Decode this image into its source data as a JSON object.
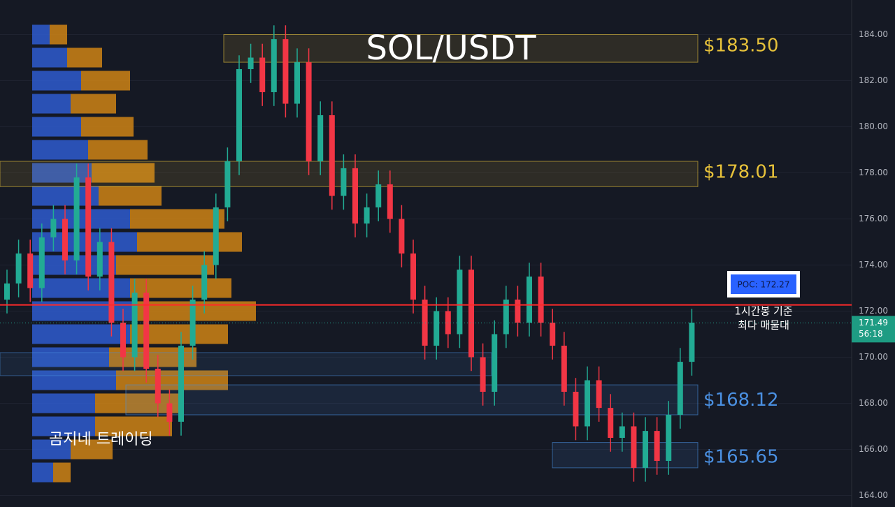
{
  "chart_data": {
    "type": "candlestick",
    "title": "SOL/USDT",
    "watermark": "곰지네 트레이딩",
    "ylim": [
      163.5,
      185.5
    ],
    "yticks": [
      {
        "value": 164,
        "label": "164.00"
      },
      {
        "value": 166,
        "label": "166.00"
      },
      {
        "value": 168,
        "label": "168.00"
      },
      {
        "value": 170,
        "label": "170.00"
      },
      {
        "value": 172,
        "label": "172.00"
      },
      {
        "value": 174,
        "label": "174.00"
      },
      {
        "value": 176,
        "label": "176.00"
      },
      {
        "value": 178,
        "label": "178.00"
      },
      {
        "value": 180,
        "label": "180.00"
      },
      {
        "value": 182,
        "label": "182.00"
      },
      {
        "value": 184,
        "label": "184.00"
      }
    ],
    "grid": true,
    "up_color": "#22ab94",
    "down_color": "#f23645",
    "open": [
      172.5,
      173.2,
      174.5,
      173.0,
      175.2,
      176.0,
      174.2,
      177.8,
      173.5,
      175.0,
      171.5,
      170.0,
      172.8,
      169.5,
      168.0,
      167.2,
      170.5,
      172.5,
      174.0,
      176.5,
      178.5,
      182.5,
      183.0,
      181.5,
      183.8,
      181.0,
      182.8,
      178.5,
      180.5,
      177.0,
      178.2,
      175.8,
      176.5,
      177.5,
      176.0,
      174.5,
      172.5,
      170.5,
      172.0,
      171.0,
      173.8,
      170.0,
      168.5,
      171.0,
      172.5,
      171.5,
      173.5,
      171.5,
      170.5,
      168.5,
      167.0,
      169.0,
      167.8,
      166.5,
      167.0,
      165.2,
      166.8,
      165.5,
      167.5,
      169.8
    ],
    "high": [
      173.8,
      175.1,
      175.1,
      175.8,
      176.6,
      176.6,
      178.4,
      178.4,
      175.6,
      175.6,
      172.1,
      173.4,
      173.4,
      170.1,
      168.6,
      171.1,
      173.1,
      174.6,
      177.1,
      179.1,
      183.1,
      183.6,
      183.6,
      184.4,
      184.4,
      183.4,
      183.4,
      181.1,
      181.1,
      178.8,
      178.8,
      177.1,
      178.1,
      178.1,
      176.6,
      175.1,
      173.1,
      172.6,
      172.6,
      174.4,
      174.4,
      170.6,
      171.6,
      173.1,
      173.1,
      174.1,
      174.1,
      172.1,
      171.1,
      169.1,
      169.6,
      169.6,
      168.4,
      167.6,
      167.6,
      167.4,
      167.4,
      168.1,
      170.4,
      172.1
    ],
    "low": [
      171.9,
      172.6,
      172.4,
      172.4,
      174.6,
      173.6,
      173.6,
      172.9,
      172.9,
      170.9,
      169.4,
      169.4,
      168.9,
      167.4,
      166.6,
      166.6,
      169.9,
      171.9,
      173.4,
      175.9,
      177.9,
      181.9,
      180.9,
      180.9,
      180.4,
      180.4,
      177.9,
      177.9,
      176.4,
      176.4,
      175.2,
      175.2,
      175.9,
      175.4,
      173.9,
      171.9,
      169.9,
      169.9,
      170.4,
      170.4,
      169.4,
      167.9,
      167.9,
      170.4,
      170.9,
      170.9,
      170.9,
      169.9,
      167.9,
      166.4,
      166.4,
      167.2,
      165.9,
      165.9,
      164.6,
      164.6,
      164.9,
      164.9,
      166.9,
      169.2
    ],
    "close": [
      173.2,
      174.5,
      173.0,
      175.2,
      176.0,
      174.2,
      177.8,
      173.5,
      175.0,
      171.5,
      170.0,
      172.8,
      169.5,
      168.0,
      167.2,
      170.5,
      172.5,
      174.0,
      176.5,
      178.5,
      182.5,
      183.0,
      181.5,
      183.8,
      181.0,
      182.8,
      178.5,
      180.5,
      177.0,
      178.2,
      175.8,
      176.5,
      177.5,
      176.0,
      174.5,
      172.5,
      170.5,
      172.0,
      171.0,
      173.8,
      170.0,
      168.5,
      171.0,
      172.5,
      171.5,
      173.5,
      171.5,
      170.5,
      168.5,
      167.0,
      169.0,
      167.8,
      166.5,
      167.0,
      165.2,
      166.8,
      165.5,
      167.5,
      169.8,
      171.5
    ],
    "volume_profile": {
      "prices": [
        184,
        183,
        182,
        181,
        180,
        179,
        178,
        177,
        176,
        175,
        174,
        173,
        172,
        171,
        170,
        169,
        168,
        167,
        166,
        165
      ],
      "up": [
        25,
        50,
        70,
        55,
        70,
        80,
        85,
        95,
        140,
        150,
        120,
        140,
        150,
        140,
        110,
        120,
        90,
        90,
        55,
        30
      ],
      "down": [
        25,
        50,
        70,
        65,
        75,
        85,
        90,
        90,
        135,
        150,
        140,
        145,
        170,
        140,
        125,
        160,
        120,
        110,
        60,
        25
      ],
      "up_color": "#2f5fd9",
      "down_color": "#d98a14"
    },
    "zones": [
      {
        "value": 183.5,
        "label": "$183.50",
        "top": 184.0,
        "bottom": 182.8,
        "color": "#e6c13a"
      },
      {
        "value": 178.01,
        "label": "$178.01",
        "top": 178.5,
        "bottom": 177.4,
        "color": "#e6c13a"
      },
      {
        "value": 168.12,
        "label": "$168.12",
        "top": 168.8,
        "bottom": 167.5,
        "color": "#4a8fe0"
      },
      {
        "value": 165.65,
        "label": "$165.65",
        "top": 166.3,
        "bottom": 165.2,
        "color": "#4a8fe0"
      }
    ],
    "poc": {
      "value": 172.27,
      "label": "POC: 172.27",
      "note": [
        "1시간봉 기준",
        "최다 매물대"
      ]
    },
    "last_price": 171.49,
    "countdown": "56:18"
  }
}
